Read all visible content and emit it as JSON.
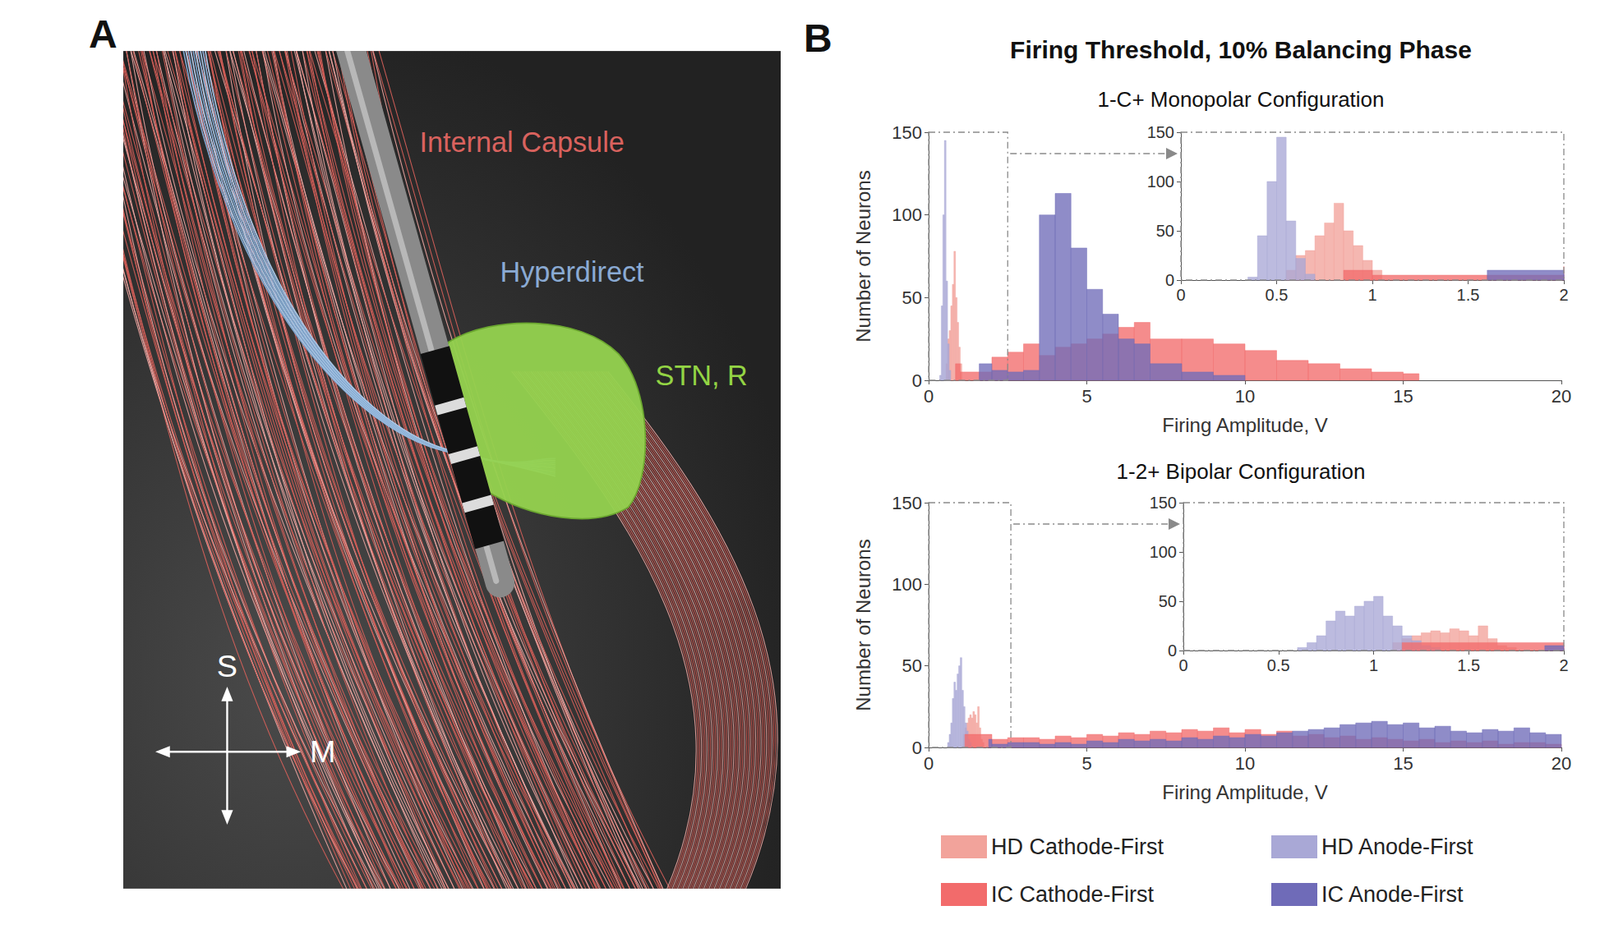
{
  "panels": [
    "A",
    "B"
  ],
  "panel_a": {
    "labels": {
      "internal_capsule": "Internal Capsule",
      "hyperdirect": "Hyperdirect",
      "stn": "STN, R"
    },
    "compass": {
      "up": "S",
      "right": "M"
    }
  },
  "figure_title": "Firing Threshold, 10% Balancing Phase",
  "chart_data": [
    {
      "type": "histogram",
      "title": "1-C+ Monopolar Configuration",
      "x_label": "Firing Amplitude, V",
      "y_label": "Number of Neurons",
      "xlim": [
        0,
        20
      ],
      "xticks": [
        0,
        5,
        10,
        15,
        20
      ],
      "ylim": [
        0,
        150
      ],
      "yticks": [
        0,
        50,
        100,
        150
      ],
      "series": [
        {
          "name": "HD Cathode-First",
          "color": "#f2a39b",
          "bins": [
            0.55,
            0.6,
            0.65,
            0.7,
            0.75,
            0.8,
            0.85,
            0.9,
            0.95,
            1.0,
            1.05
          ],
          "values": [
            10,
            25,
            30,
            45,
            58,
            78,
            50,
            35,
            20,
            10
          ]
        },
        {
          "name": "HD Anode-First",
          "color": "#a9a8d6",
          "bins": [
            0.35,
            0.4,
            0.45,
            0.5,
            0.55,
            0.6,
            0.65,
            0.7
          ],
          "values": [
            3,
            45,
            100,
            145,
            60,
            22,
            6
          ]
        },
        {
          "name": "IC Cathode-First",
          "color": "#f26b6b",
          "bins": [
            0.85,
            1.0,
            1.6,
            2.0,
            2.5,
            3.0,
            3.5,
            4.0,
            4.5,
            5.0,
            5.5,
            6.0,
            6.5,
            7.0,
            8.0,
            9.0,
            10.0,
            11.0,
            12.0,
            13.0,
            14.0,
            15.0,
            15.5
          ],
          "values": [
            10,
            5,
            5,
            14,
            17,
            22,
            15,
            20,
            22,
            25,
            28,
            32,
            35,
            25,
            25,
            22,
            18,
            12,
            10,
            7,
            5,
            4
          ]
        },
        {
          "name": "IC Anode-First",
          "color": "#6f6bb8",
          "bins": [
            1.6,
            2.0,
            2.5,
            3.0,
            3.5,
            4.0,
            4.5,
            5.0,
            5.5,
            6.0,
            6.5,
            7.0,
            8.0,
            9.0,
            10.0
          ],
          "values": [
            10,
            6,
            5,
            6,
            100,
            113,
            80,
            55,
            40,
            25,
            22,
            10,
            5,
            3
          ]
        }
      ],
      "inset": {
        "xlim": [
          0,
          2
        ],
        "xticks": [
          0,
          0.5,
          1,
          1.5,
          2
        ],
        "ylim": [
          0,
          150
        ],
        "yticks": [
          0,
          50,
          100,
          150
        ],
        "source_xlim": [
          0,
          2.5
        ],
        "source_ylim": [
          0,
          150
        ]
      }
    },
    {
      "type": "histogram",
      "title": "1-2+ Bipolar Configuration",
      "x_label": "Firing Amplitude, V",
      "y_label": "Number of Neurons",
      "xlim": [
        0,
        20
      ],
      "xticks": [
        0,
        5,
        10,
        15,
        20
      ],
      "ylim": [
        0,
        150
      ],
      "yticks": [
        0,
        50,
        100,
        150
      ],
      "legend": "bottom",
      "series": [
        {
          "name": "HD Cathode-First",
          "color": "#f2a39b",
          "bins": [
            1.1,
            1.15,
            1.2,
            1.25,
            1.3,
            1.35,
            1.4,
            1.45,
            1.5,
            1.55,
            1.6,
            1.65,
            1.7,
            1.75
          ],
          "values": [
            8,
            12,
            15,
            18,
            20,
            18,
            22,
            20,
            15,
            25,
            12,
            5,
            3
          ]
        },
        {
          "name": "HD Anode-First",
          "color": "#a9a8d6",
          "bins": [
            0.6,
            0.65,
            0.7,
            0.75,
            0.8,
            0.85,
            0.9,
            0.95,
            1.0,
            1.05,
            1.1,
            1.15,
            1.2,
            1.25,
            1.3,
            1.35
          ],
          "values": [
            3,
            8,
            15,
            30,
            40,
            35,
            45,
            50,
            55,
            35,
            25,
            15,
            10,
            5,
            3
          ]
        },
        {
          "name": "IC Cathode-First",
          "color": "#f26b6b",
          "bins": [
            1.15,
            2,
            2.5,
            3,
            3.5,
            4,
            4.5,
            5,
            5.5,
            6,
            6.5,
            7,
            7.5,
            8,
            8.5,
            9,
            9.5,
            10,
            10.5,
            11,
            11.5,
            12,
            12.5,
            13,
            13.5,
            14,
            14.5,
            15,
            15.5,
            16,
            16.5,
            17,
            17.5,
            18,
            18.5,
            19,
            19.5,
            20
          ],
          "values": [
            8,
            5,
            6,
            6,
            5,
            7,
            6,
            8,
            7,
            9,
            8,
            10,
            9,
            11,
            10,
            12,
            9,
            11,
            8,
            10,
            7,
            8,
            6,
            7,
            5,
            6,
            5,
            4,
            5,
            3,
            4,
            3,
            4,
            2,
            3,
            3,
            2
          ]
        },
        {
          "name": "IC Anode-First",
          "color": "#6f6bb8",
          "bins": [
            1.9,
            2,
            2.5,
            3,
            3.5,
            4,
            4.5,
            5,
            5.5,
            6,
            6.5,
            7,
            7.5,
            8,
            8.5,
            9,
            9.5,
            10,
            10.5,
            11,
            11.5,
            12,
            12.5,
            13,
            13.5,
            14,
            14.5,
            15,
            15.5,
            16,
            16.5,
            17,
            17.5,
            18,
            18.5,
            19,
            19.5,
            20
          ],
          "values": [
            5,
            2,
            3,
            3,
            2,
            3,
            2,
            4,
            3,
            5,
            4,
            5,
            4,
            6,
            5,
            7,
            6,
            8,
            7,
            9,
            10,
            11,
            12,
            14,
            15,
            16,
            14,
            15,
            12,
            13,
            10,
            9,
            11,
            10,
            12,
            9,
            8
          ]
        }
      ],
      "inset": {
        "xlim": [
          0,
          2
        ],
        "xticks": [
          0,
          0.5,
          1,
          1.5,
          2
        ],
        "ylim": [
          0,
          150
        ],
        "yticks": [
          0,
          50,
          100,
          150
        ],
        "source_xlim": [
          0,
          2.6
        ],
        "source_ylim": [
          0,
          150
        ]
      }
    }
  ]
}
